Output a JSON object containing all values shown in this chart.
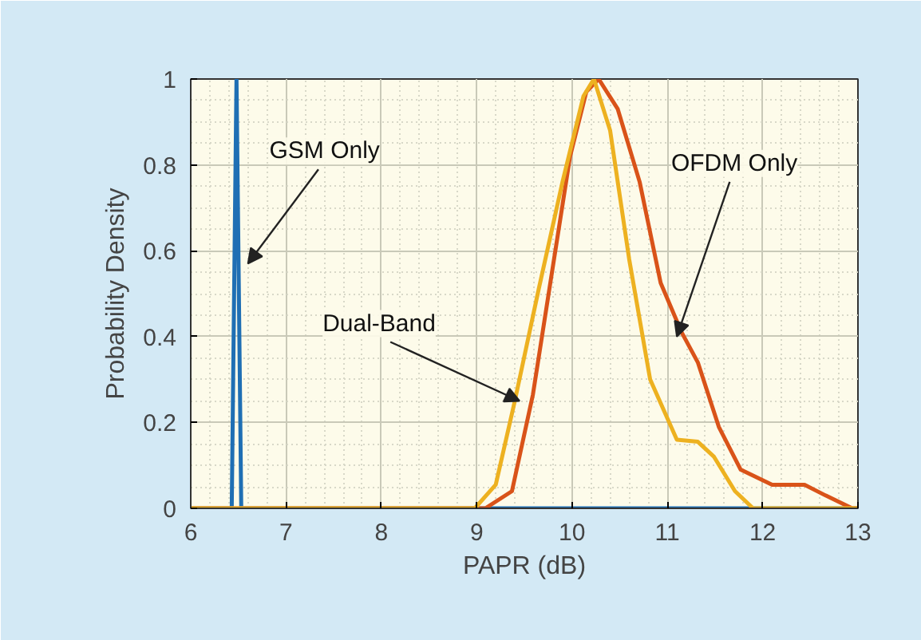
{
  "chart_data": {
    "type": "line",
    "xlabel": "PAPR (dB)",
    "ylabel": "Probability Density",
    "xlim": [
      6,
      13
    ],
    "ylim": [
      0,
      1
    ],
    "xticks": [
      6,
      7,
      8,
      9,
      10,
      11,
      12,
      13
    ],
    "yticks": [
      0,
      0.2,
      0.4,
      0.6,
      0.8,
      1
    ],
    "grid": true,
    "series": [
      {
        "color": "#1f6fb4",
        "x": [
          6,
          6.43,
          6.48,
          6.53,
          13
        ],
        "values": [
          0,
          0,
          1,
          0,
          0
        ]
      },
      {
        "color": "#d95319",
        "x": [
          6,
          9.09,
          9.37,
          9.59,
          9.79,
          9.98,
          10.15,
          10.28,
          10.48,
          10.71,
          10.93,
          11.15,
          11.32,
          11.54,
          11.77,
          12.1,
          12.44,
          12.66,
          12.94,
          13
        ],
        "values": [
          0,
          0,
          0.04,
          0.265,
          0.55,
          0.82,
          0.97,
          1,
          0.93,
          0.76,
          0.525,
          0.41,
          0.34,
          0.19,
          0.09,
          0.055,
          0.055,
          0.03,
          0,
          0
        ]
      },
      {
        "color": "#edb120",
        "x": [
          6,
          8.98,
          9.2,
          9.4,
          9.65,
          9.9,
          10.12,
          10.23,
          10.4,
          10.6,
          10.82,
          11.1,
          11.32,
          11.49,
          11.71,
          11.9,
          13
        ],
        "values": [
          0,
          0,
          0.055,
          0.25,
          0.51,
          0.76,
          0.96,
          1,
          0.88,
          0.58,
          0.3,
          0.16,
          0.155,
          0.12,
          0.04,
          0,
          0
        ]
      }
    ],
    "annotations": [
      {
        "text": "GSM Only",
        "x": 6.6,
        "y": 0.57
      },
      {
        "text": "Dual-Band",
        "x": 9.45,
        "y": 0.25
      },
      {
        "text": "OFDM Only",
        "x": 11.1,
        "y": 0.4
      }
    ]
  }
}
